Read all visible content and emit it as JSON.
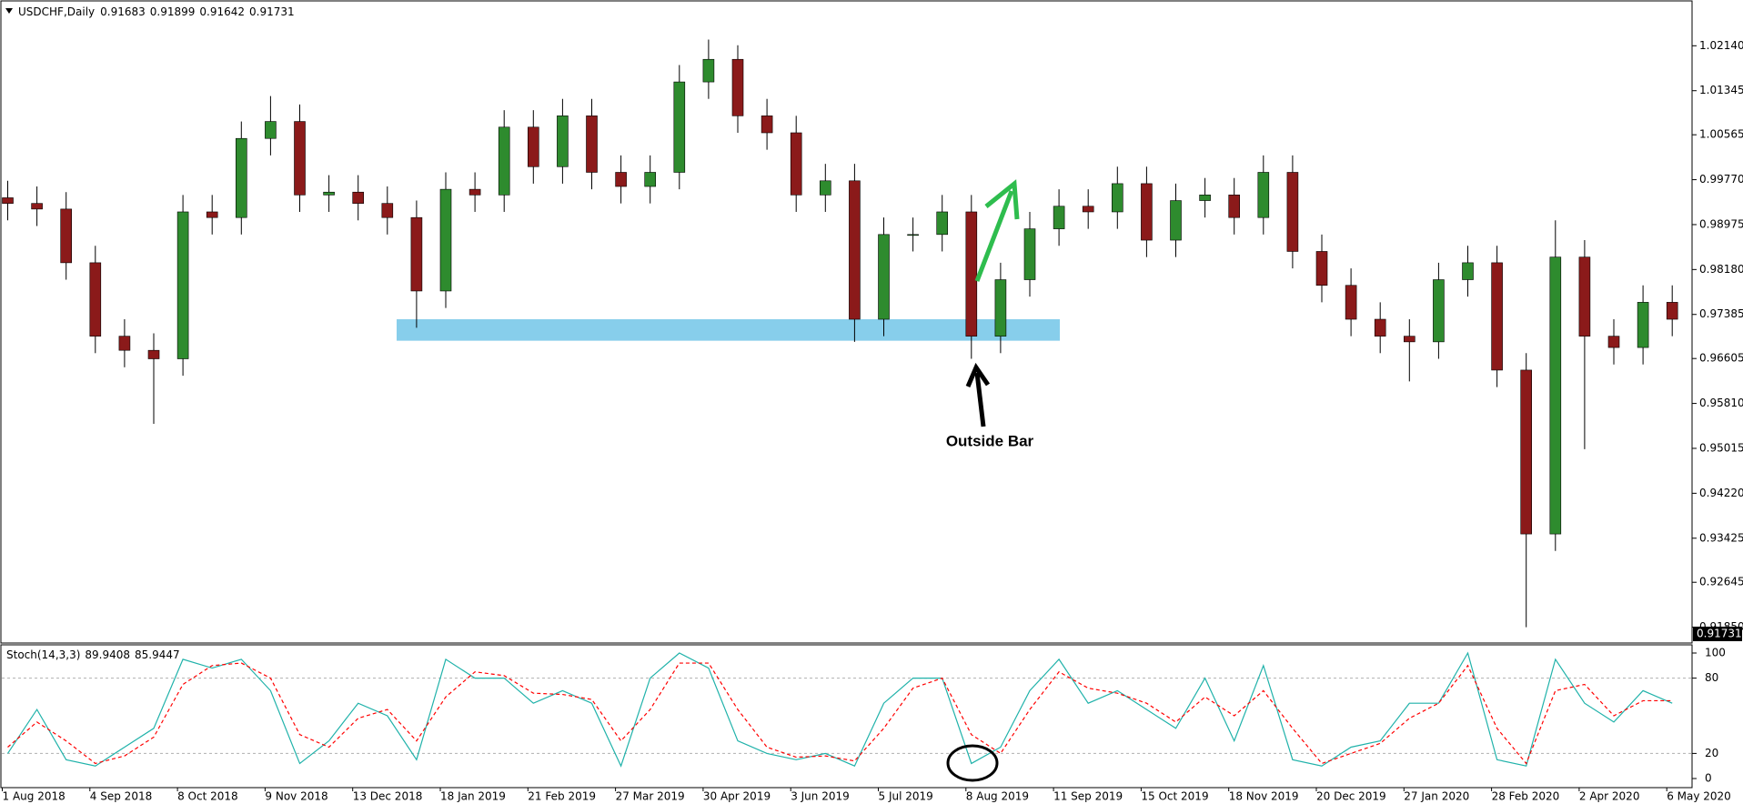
{
  "chart_data": [
    {
      "type": "candlestick",
      "title": "USDCHF,Daily",
      "ohlc": [
        0.91683,
        0.91899,
        0.91642,
        0.91731
      ],
      "up_color": "#2e8b2e",
      "down_color": "#8b1a1a",
      "wick_color": "#000000",
      "categories": [
        "1 Aug 2018",
        null,
        null,
        "4 Sep 2018",
        null,
        null,
        "8 Oct 2018",
        null,
        null,
        "9 Nov 2018",
        null,
        null,
        "13 Dec 2018",
        null,
        null,
        "18 Jan 2019",
        null,
        null,
        "21 Feb 2019",
        null,
        null,
        "27 Mar 2019",
        null,
        null,
        "30 Apr 2019",
        null,
        null,
        "3 Jun 2019",
        null,
        null,
        "5 Jul 2019",
        null,
        null,
        "8 Aug 2019",
        null,
        null,
        "11 Sep 2019",
        null,
        null,
        "15 Oct 2019",
        null,
        null,
        "18 Nov 2019",
        null,
        null,
        "20 Dec 2019",
        null,
        null,
        "27 Jan 2020",
        null,
        null,
        "28 Feb 2020",
        null,
        null,
        "2 Apr 2020",
        null,
        null,
        "6 May 2020"
      ],
      "open": [
        0.9945,
        0.9935,
        0.9925,
        0.983,
        0.97,
        0.9675,
        0.966,
        0.992,
        0.991,
        1.005,
        1.008,
        0.995,
        0.9955,
        0.9935,
        0.991,
        0.978,
        0.996,
        0.995,
        1.007,
        1.0,
        1.009,
        0.999,
        0.9965,
        0.999,
        1.015,
        1.019,
        1.009,
        1.006,
        0.995,
        0.9975,
        0.973,
        0.988,
        0.988,
        0.992,
        0.97,
        0.98,
        0.989,
        0.993,
        0.992,
        0.997,
        0.987,
        0.994,
        0.995,
        0.991,
        0.999,
        0.985,
        0.979,
        0.973,
        0.97,
        0.969,
        0.98,
        0.983,
        0.964,
        0.935,
        0.984,
        0.97,
        0.968,
        0.976
      ],
      "high": [
        0.9975,
        0.9965,
        0.9955,
        0.986,
        0.973,
        0.9705,
        0.995,
        0.995,
        1.008,
        1.0125,
        1.011,
        0.9985,
        0.9985,
        0.9965,
        0.994,
        0.999,
        0.999,
        1.01,
        1.01,
        1.012,
        1.012,
        1.002,
        1.002,
        1.018,
        1.0225,
        1.0215,
        1.012,
        1.009,
        1.0005,
        1.0005,
        0.991,
        0.991,
        0.995,
        0.995,
        0.983,
        0.992,
        0.996,
        0.996,
        1.0,
        1.0,
        0.997,
        0.998,
        0.998,
        1.002,
        1.002,
        0.988,
        0.982,
        0.976,
        0.973,
        0.983,
        0.986,
        0.986,
        0.967,
        0.9905,
        0.987,
        0.973,
        0.979,
        0.979
      ],
      "low": [
        0.9905,
        0.9895,
        0.98,
        0.967,
        0.9645,
        0.9545,
        0.963,
        0.988,
        0.988,
        1.002,
        0.992,
        0.992,
        0.9905,
        0.988,
        0.9715,
        0.975,
        0.992,
        0.992,
        0.997,
        0.997,
        0.996,
        0.9935,
        0.9935,
        0.996,
        1.012,
        1.006,
        1.003,
        0.992,
        0.992,
        0.969,
        0.97,
        0.985,
        0.985,
        0.966,
        0.967,
        0.977,
        0.986,
        0.989,
        0.989,
        0.984,
        0.984,
        0.991,
        0.988,
        0.988,
        0.982,
        0.976,
        0.97,
        0.967,
        0.962,
        0.966,
        0.977,
        0.961,
        0.9185,
        0.932,
        0.95,
        0.965,
        0.965,
        0.97
      ],
      "close": [
        0.9935,
        0.9925,
        0.983,
        0.97,
        0.9675,
        0.966,
        0.992,
        0.991,
        1.005,
        1.008,
        0.995,
        0.9955,
        0.9935,
        0.991,
        0.978,
        0.996,
        0.995,
        1.007,
        1.0,
        1.009,
        0.999,
        0.9965,
        0.999,
        1.015,
        1.019,
        1.009,
        1.006,
        0.995,
        0.9975,
        0.973,
        0.988,
        0.988,
        0.992,
        0.97,
        0.98,
        0.989,
        0.993,
        0.992,
        0.997,
        0.987,
        0.994,
        0.995,
        0.991,
        0.999,
        0.985,
        0.979,
        0.973,
        0.97,
        0.969,
        0.98,
        0.983,
        0.964,
        0.935,
        0.984,
        0.97,
        0.968,
        0.976,
        0.973
      ],
      "ylim": [
        0.9157,
        1.0295
      ],
      "yticks": [
        {
          "value": 1.0214,
          "label": "1.02140"
        },
        1.01345,
        1.00565,
        {
          "value": 0.9977,
          "label": "0.99770"
        },
        0.98975,
        {
          "value": 0.9818,
          "label": "0.98180"
        },
        0.97385,
        0.96605,
        {
          "value": 0.9581,
          "label": "0.95810"
        },
        0.95015,
        {
          "value": 0.9422,
          "label": "0.94220"
        },
        0.93425,
        0.92645,
        {
          "value": 0.9185,
          "label": "0.91850"
        }
      ],
      "last_price": 0.91731,
      "zone": {
        "from": 0.9692,
        "to": 0.973,
        "color": "#87ceeb"
      },
      "annotation": "Outside Bar"
    },
    {
      "type": "line",
      "title": "Stoch(14,3,3)",
      "current": [
        89.9408,
        85.9447
      ],
      "ylim": [
        0,
        100
      ],
      "yticks": [
        0,
        20,
        80,
        100
      ],
      "levels": [
        20,
        80
      ],
      "series": [
        {
          "color": "#20b2aa",
          "dashed": false,
          "values": [
            20,
            55,
            15,
            10,
            25,
            40,
            95,
            88,
            95,
            70,
            12,
            30,
            60,
            50,
            15,
            95,
            80,
            80,
            60,
            70,
            60,
            10,
            80,
            100,
            88,
            30,
            20,
            15,
            20,
            10,
            60,
            80,
            80,
            12,
            25,
            70,
            95,
            60,
            70,
            55,
            40,
            80,
            30,
            90,
            15,
            10,
            25,
            30,
            60,
            60,
            100,
            15,
            10,
            95,
            60,
            45,
            70,
            60
          ]
        },
        {
          "color": "#ff0000",
          "dashed": true,
          "values": [
            25,
            45,
            30,
            12,
            18,
            33,
            75,
            90,
            92,
            80,
            35,
            25,
            48,
            55,
            30,
            65,
            85,
            82,
            68,
            67,
            63,
            30,
            55,
            92,
            92,
            55,
            25,
            17,
            18,
            14,
            40,
            72,
            80,
            35,
            20,
            55,
            85,
            72,
            68,
            60,
            45,
            65,
            50,
            70,
            40,
            12,
            20,
            28,
            48,
            60,
            90,
            40,
            12,
            70,
            75,
            50,
            62,
            62
          ]
        }
      ]
    }
  ]
}
